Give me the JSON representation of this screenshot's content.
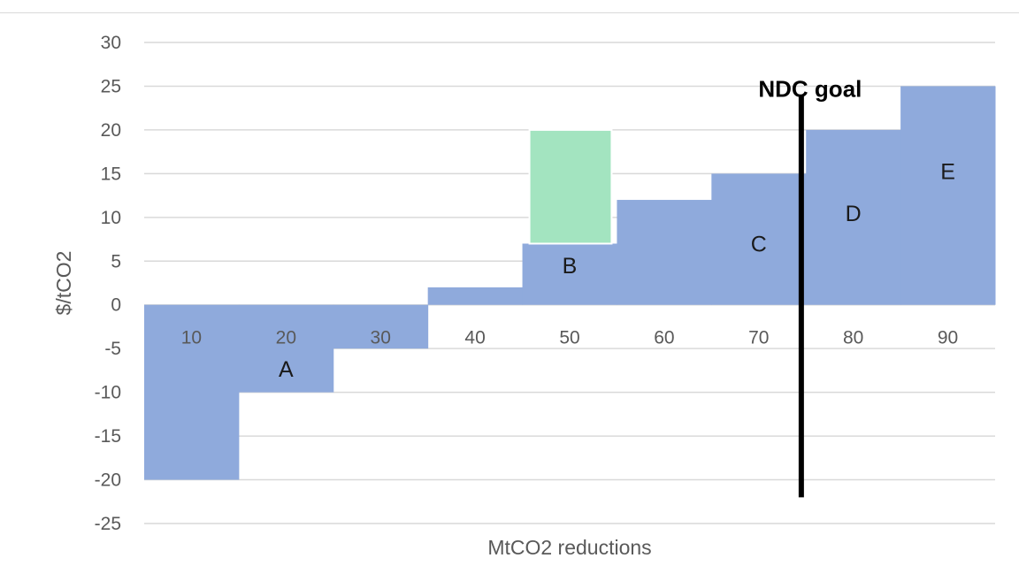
{
  "chart_data": {
    "type": "bar",
    "subtype": "marginal-abatement-cost-curve",
    "title": "",
    "xlabel": "MtCO2 reductions",
    "ylabel": "$/tCO2",
    "ylim": [
      -25,
      30
    ],
    "yticks": [
      30,
      25,
      20,
      15,
      10,
      5,
      0,
      -5,
      -10,
      -15,
      -20,
      -25
    ],
    "grid": true,
    "legend": "none",
    "categories": [
      "10",
      "20",
      "30",
      "40",
      "50",
      "60",
      "70",
      "80",
      "90"
    ],
    "values": [
      -20,
      -10,
      -5,
      2,
      7,
      12,
      15,
      20,
      25
    ],
    "segment_labels": [
      {
        "text": "A",
        "category": "20",
        "y": -7.3
      },
      {
        "text": "B",
        "category": "50",
        "y": 4.5
      },
      {
        "text": "C",
        "category": "70",
        "y": 7
      },
      {
        "text": "D",
        "category": "80",
        "y": 10.5
      },
      {
        "text": "E",
        "category": "90",
        "y": 15.3
      }
    ],
    "highlight": {
      "category": "50",
      "from": 7,
      "to": 20
    },
    "goal_line": {
      "label": "NDC goal",
      "x_category_position": 74.5,
      "y_from": -22,
      "y_to": 24
    },
    "colors": {
      "bars": "#8faadc",
      "highlight": "#a3e4c0",
      "goal_line": "#000000",
      "grid": "#d9d9d9"
    }
  }
}
